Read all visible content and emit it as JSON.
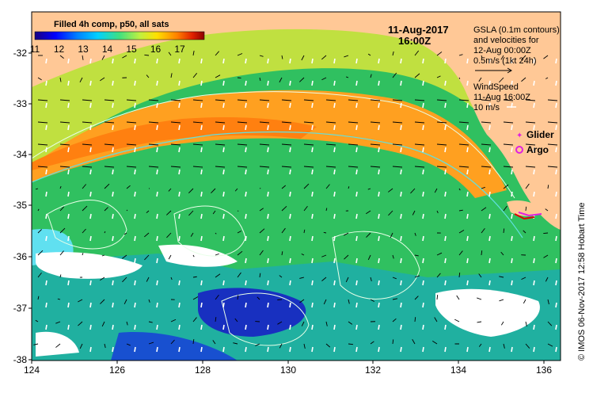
{
  "map": {
    "colorbar": {
      "title": "Filled 4h comp, p50, all sats",
      "ticks": [
        "11",
        "12",
        "13",
        "14",
        "15",
        "16",
        "17"
      ],
      "gradient": [
        "#1a0080",
        "#0000ff",
        "#0080ff",
        "#00d0ff",
        "#40e080",
        "#c0f040",
        "#ffe000",
        "#ff8000",
        "#e02000",
        "#8b0000"
      ]
    },
    "datetime_line1": "11-Aug-2017",
    "datetime_line2": "16:00Z",
    "gsla_info": [
      "GSLA (0.1m contours)",
      "and velocities for",
      "12-Aug 00:00Z",
      "0.5m/s (1kt 24h)"
    ],
    "wind_info": [
      "WindSpeed",
      "11-Aug 16:00Z",
      "10 m/s"
    ],
    "legend": {
      "glider_label": "Glider",
      "glider_color": "#e020e0",
      "argo_label": "Argo",
      "argo_color": "#e020e0"
    },
    "lat_labels": [
      "-32",
      "-33",
      "-34",
      "-35",
      "-36",
      "-37",
      "-38"
    ],
    "lon_labels": [
      "124",
      "126",
      "128",
      "130",
      "132",
      "134",
      "136"
    ],
    "credit": "© IMOS 06-Nov-2017 12:58 Hobart Time",
    "land_color": "#ffc896"
  }
}
